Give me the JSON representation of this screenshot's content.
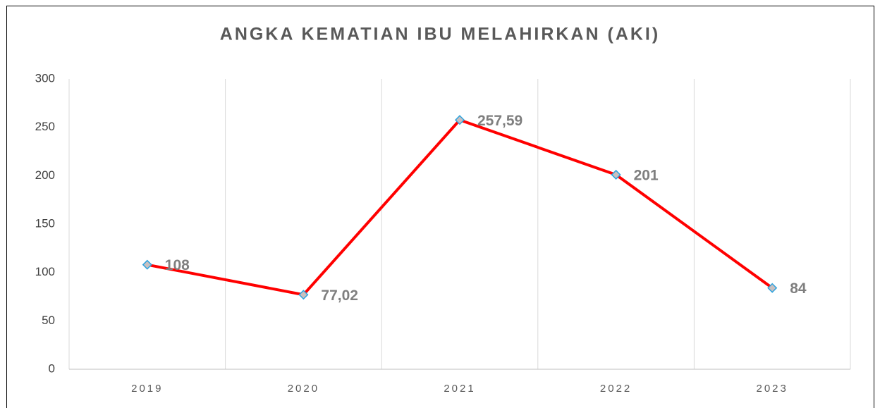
{
  "chart_data": {
    "type": "line",
    "title": "ANGKA KEMATIAN IBU MELAHIRKAN (AKI)",
    "categories": [
      "2019",
      "2020",
      "2021",
      "2022",
      "2023"
    ],
    "series": [
      {
        "color": "#ff0000",
        "values": [
          108,
          77.02,
          257.59,
          201,
          84
        ],
        "value_labels": [
          "108",
          "77,02",
          "257,59",
          "201",
          "84"
        ]
      }
    ],
    "ylim": [
      0,
      300
    ],
    "yticks": [
      0,
      50,
      100,
      150,
      200,
      250,
      300
    ],
    "grid": true
  }
}
